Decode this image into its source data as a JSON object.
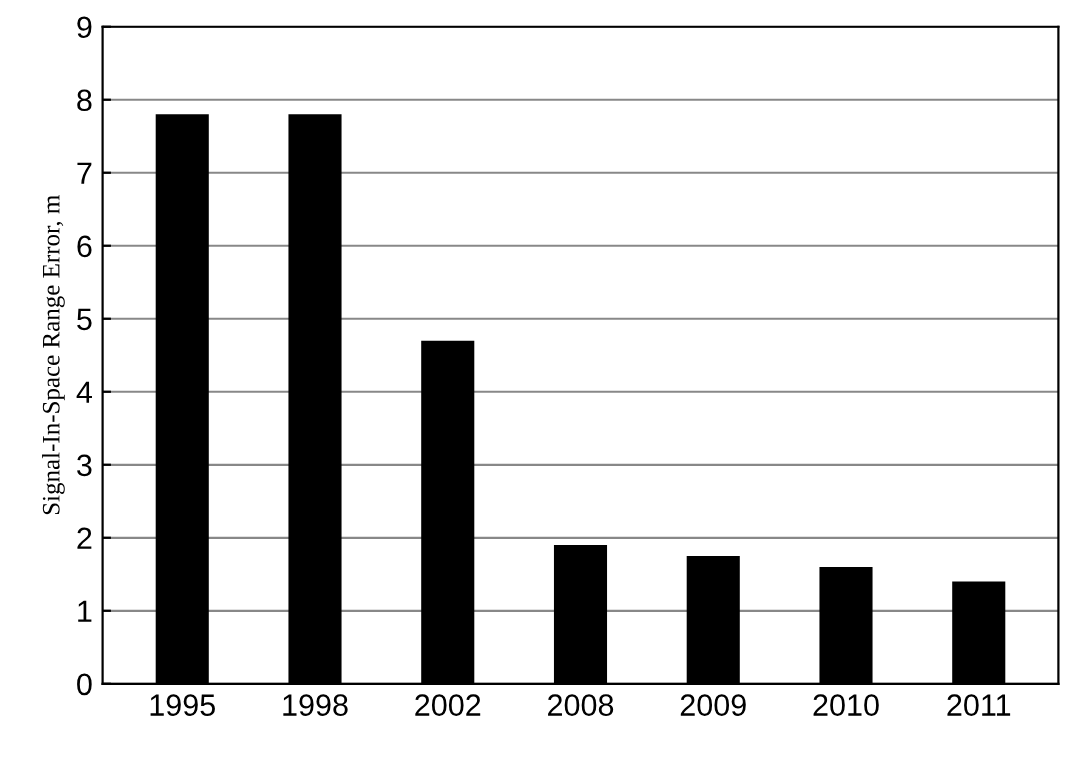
{
  "chart_data": {
    "type": "bar",
    "ylabel": "Signal-In-Space Range Error, m",
    "categories": [
      "1995",
      "1998",
      "2002",
      "2008",
      "2009",
      "2010",
      "2011"
    ],
    "values": [
      7.8,
      7.8,
      4.7,
      1.9,
      1.75,
      1.6,
      1.4
    ],
    "color": "#000000",
    "ylim": [
      0,
      9
    ],
    "yticks": [
      0,
      1,
      2,
      3,
      4,
      5,
      6,
      7,
      8,
      9
    ],
    "grid": "y",
    "legend": false
  }
}
